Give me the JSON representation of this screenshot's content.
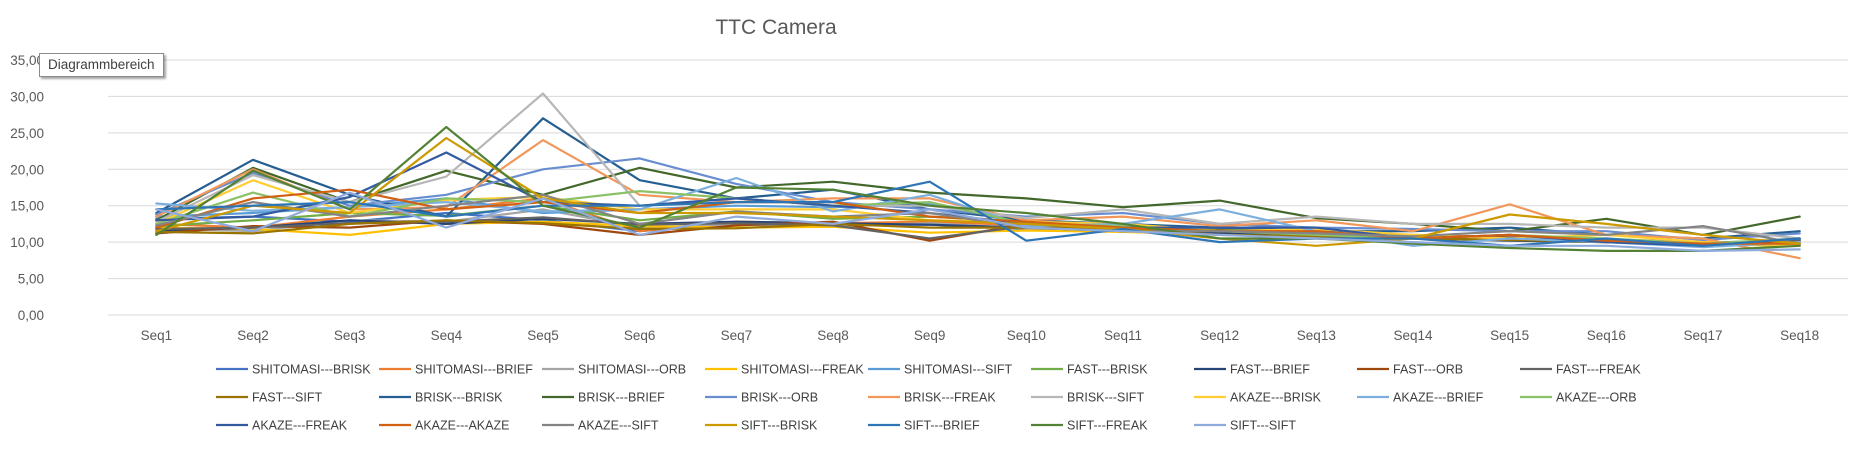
{
  "chart_data": {
    "type": "line",
    "title": "TTC Camera",
    "xlabel": "",
    "ylabel": "",
    "ylim": [
      0,
      35
    ],
    "ytick_values": [
      0,
      5,
      10,
      15,
      20,
      25,
      30,
      35
    ],
    "ytick_labels": [
      "0,00",
      "5,00",
      "10,00",
      "15,00",
      "20,00",
      "25,00",
      "30,00",
      "35,00"
    ],
    "grid": true,
    "legend_position": "bottom",
    "categories": [
      "Seq1",
      "Seq2",
      "Seq3",
      "Seq4",
      "Seq5",
      "Seq6",
      "Seq7",
      "Seq8",
      "Seq9",
      "Seq10",
      "Seq11",
      "Seq12",
      "Seq13",
      "Seq14",
      "Seq15",
      "Seq16",
      "Seq17",
      "Seq18"
    ],
    "series": [
      {
        "name": "SHITOMASI---BRISK",
        "color": "#4472C4",
        "values": [
          13.2,
          13.5,
          12.8,
          14.0,
          13.0,
          11.5,
          12.5,
          12.3,
          12.4,
          11.8,
          11.6,
          11.5,
          11.0,
          10.8,
          10.5,
          10.2,
          9.8,
          10.0
        ]
      },
      {
        "name": "SHITOMASI---BRIEF",
        "color": "#ED7D31",
        "values": [
          12.5,
          12.0,
          13.5,
          14.5,
          16.0,
          11.5,
          12.8,
          12.6,
          12.8,
          12.3,
          12.0,
          11.3,
          11.2,
          11.0,
          10.7,
          10.4,
          10.0,
          9.6
        ]
      },
      {
        "name": "SHITOMASI---ORB",
        "color": "#A5A5A5",
        "values": [
          11.9,
          11.5,
          13.0,
          12.8,
          14.5,
          12.0,
          12.4,
          12.2,
          12.6,
          11.9,
          11.8,
          11.4,
          11.0,
          10.7,
          10.4,
          10.1,
          9.9,
          9.8
        ]
      },
      {
        "name": "SHITOMASI---FREAK",
        "color": "#FFC000",
        "values": [
          12.0,
          11.8,
          11.0,
          12.5,
          12.8,
          12.2,
          12.0,
          12.1,
          11.3,
          11.6,
          11.4,
          11.0,
          10.9,
          10.6,
          10.3,
          10.0,
          9.7,
          9.5
        ]
      },
      {
        "name": "SHITOMASI---SIFT",
        "color": "#5B9BD5",
        "values": [
          13.5,
          14.0,
          14.8,
          16.0,
          14.0,
          14.5,
          15.0,
          14.8,
          15.2,
          12.5,
          12.0,
          11.8,
          11.2,
          10.8,
          10.6,
          10.2,
          9.8,
          9.6
        ]
      },
      {
        "name": "FAST---BRISK",
        "color": "#70AD47",
        "values": [
          12.2,
          13.0,
          14.0,
          13.6,
          15.0,
          13.0,
          14.2,
          13.2,
          13.5,
          12.8,
          12.4,
          11.8,
          11.3,
          10.9,
          10.4,
          10.1,
          9.9,
          10.1
        ]
      },
      {
        "name": "FAST---BRIEF",
        "color": "#264478",
        "values": [
          11.5,
          12.0,
          13.0,
          12.5,
          13.2,
          12.5,
          12.8,
          12.6,
          12.4,
          12.0,
          11.5,
          11.2,
          10.9,
          10.5,
          10.2,
          10.0,
          9.6,
          10.4
        ]
      },
      {
        "name": "FAST---ORB",
        "color": "#9E480E",
        "values": [
          11.2,
          12.2,
          12.0,
          13.0,
          12.5,
          11.0,
          12.3,
          12.8,
          10.2,
          12.5,
          11.8,
          11.6,
          11.2,
          10.9,
          10.6,
          10.3,
          9.7,
          10.2
        ]
      },
      {
        "name": "FAST---FREAK",
        "color": "#636363",
        "values": [
          11.8,
          12.0,
          12.6,
          12.8,
          13.4,
          12.4,
          12.6,
          12.3,
          10.5,
          12.2,
          11.9,
          11.5,
          11.2,
          10.9,
          10.5,
          10.2,
          9.9,
          10.3
        ]
      },
      {
        "name": "FAST---SIFT",
        "color": "#997300",
        "values": [
          11.4,
          11.2,
          12.5,
          13.0,
          12.6,
          11.8,
          11.9,
          12.5,
          12.0,
          12.0,
          11.8,
          11.0,
          10.8,
          10.5,
          10.3,
          10.0,
          9.6,
          9.8
        ]
      },
      {
        "name": "BRISK---BRISK",
        "color": "#255E91",
        "values": [
          14.0,
          21.3,
          16.5,
          13.5,
          27.0,
          18.5,
          16.0,
          17.2,
          14.5,
          13.0,
          12.5,
          12.0,
          11.5,
          11.5,
          12.0,
          11.0,
          10.5,
          11.5
        ]
      },
      {
        "name": "BRISK---BRIEF",
        "color": "#43682B",
        "values": [
          13.0,
          20.2,
          15.5,
          19.8,
          16.5,
          20.2,
          17.5,
          18.3,
          16.8,
          16.0,
          14.8,
          15.7,
          13.3,
          12.5,
          11.5,
          13.2,
          11.0,
          13.5
        ]
      },
      {
        "name": "BRISK---ORB",
        "color": "#698ED0",
        "values": [
          13.8,
          19.5,
          15.0,
          16.5,
          20.0,
          21.5,
          18.0,
          15.5,
          14.5,
          13.5,
          14.0,
          12.5,
          12.0,
          11.8,
          11.5,
          11.5,
          10.3,
          11.2
        ]
      },
      {
        "name": "BRISK---FREAK",
        "color": "#F1975A",
        "values": [
          13.5,
          20.0,
          14.5,
          14.8,
          24.0,
          16.5,
          15.5,
          16.0,
          16.0,
          13.0,
          13.5,
          12.2,
          13.0,
          11.5,
          15.2,
          11.0,
          10.5,
          7.8
        ]
      },
      {
        "name": "BRISK---SIFT",
        "color": "#B7B7B7",
        "values": [
          12.8,
          19.2,
          15.5,
          19.0,
          30.4,
          15.0,
          16.0,
          15.0,
          15.0,
          13.3,
          14.5,
          12.5,
          13.5,
          12.5,
          12.5,
          12.0,
          12.0,
          10.5
        ]
      },
      {
        "name": "AKAZE---BRISK",
        "color": "#FFCD33",
        "values": [
          12.5,
          18.5,
          14.0,
          15.8,
          16.2,
          14.5,
          14.5,
          14.5,
          13.0,
          12.8,
          12.5,
          11.5,
          11.8,
          11.0,
          10.5,
          11.0,
          10.0,
          9.5
        ]
      },
      {
        "name": "AKAZE---BRIEF",
        "color": "#7CAFDD",
        "values": [
          15.3,
          14.3,
          14.8,
          15.5,
          14.2,
          14.5,
          18.8,
          14.2,
          16.5,
          12.2,
          12.5,
          14.5,
          11.5,
          9.5,
          10.5,
          10.0,
          9.3,
          10.0
        ]
      },
      {
        "name": "AKAZE---ORB",
        "color": "#8CC168",
        "values": [
          12.5,
          16.8,
          13.5,
          16.0,
          15.5,
          17.0,
          16.0,
          15.0,
          15.5,
          12.5,
          12.2,
          11.5,
          11.0,
          10.5,
          11.0,
          10.5,
          9.8,
          10.5
        ]
      },
      {
        "name": "AKAZE---FREAK",
        "color": "#335AA1",
        "values": [
          13.0,
          13.5,
          16.2,
          22.3,
          15.5,
          15.0,
          16.0,
          15.0,
          14.0,
          12.5,
          12.0,
          12.0,
          12.0,
          10.5,
          11.0,
          10.0,
          9.5,
          10.5
        ]
      },
      {
        "name": "AKAZE---AKAZE",
        "color": "#D26012",
        "values": [
          12.0,
          16.0,
          17.2,
          14.5,
          15.5,
          14.0,
          15.5,
          15.5,
          13.5,
          12.8,
          12.0,
          11.5,
          11.5,
          10.5,
          11.0,
          10.2,
          9.8,
          9.8
        ]
      },
      {
        "name": "AKAZE---SIFT",
        "color": "#848484",
        "values": [
          12.3,
          15.5,
          13.5,
          15.0,
          16.5,
          12.5,
          14.2,
          13.5,
          14.0,
          12.0,
          11.5,
          11.5,
          11.2,
          10.8,
          11.5,
          11.0,
          12.2,
          9.8
        ]
      },
      {
        "name": "SIFT---BRISK",
        "color": "#CC9A00",
        "values": [
          11.5,
          15.0,
          14.0,
          24.3,
          16.0,
          14.0,
          14.0,
          13.5,
          13.0,
          12.5,
          11.8,
          10.5,
          9.5,
          10.5,
          13.8,
          12.5,
          11.0,
          9.8
        ]
      },
      {
        "name": "SIFT---BRIEF",
        "color": "#2E75B6",
        "values": [
          14.5,
          15.0,
          15.5,
          13.5,
          15.0,
          15.0,
          15.5,
          15.5,
          18.3,
          10.2,
          11.8,
          10.0,
          10.5,
          10.5,
          9.5,
          10.5,
          9.5,
          10.5
        ]
      },
      {
        "name": "SIFT---FREAK",
        "color": "#548235",
        "values": [
          11.0,
          19.8,
          14.5,
          25.8,
          15.0,
          12.0,
          17.5,
          17.2,
          15.0,
          14.0,
          12.5,
          10.5,
          10.5,
          9.8,
          9.2,
          8.8,
          8.8,
          9.5
        ]
      },
      {
        "name": "SIFT---SIFT",
        "color": "#8FAADC",
        "values": [
          14.5,
          11.5,
          16.8,
          12.0,
          16.0,
          11.0,
          13.5,
          12.5,
          14.5,
          12.0,
          11.5,
          11.0,
          10.5,
          10.0,
          9.5,
          9.5,
          8.8,
          9.0
        ]
      }
    ]
  },
  "tooltip": {
    "label": "Diagrammbereich"
  }
}
